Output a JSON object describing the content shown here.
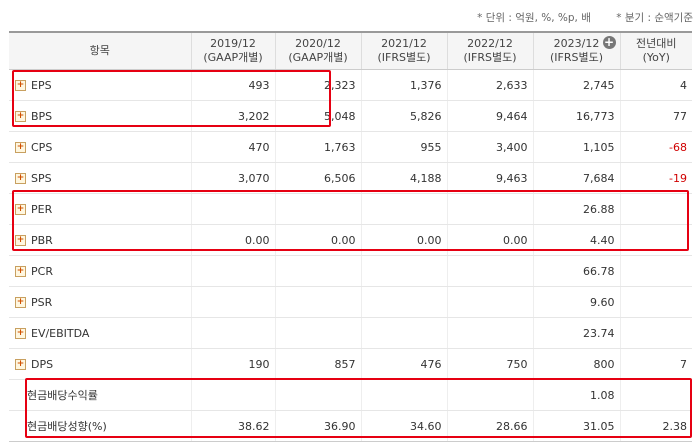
{
  "units": {
    "unit_note": "* 단위 : 억원, %, %p, 배",
    "period_note": "* 분기 : 순액기준"
  },
  "header": {
    "item_label": "항목",
    "columns": [
      {
        "period": "2019/12",
        "basis": "(GAAP개별)"
      },
      {
        "period": "2020/12",
        "basis": "(GAAP개별)"
      },
      {
        "period": "2021/12",
        "basis": "(IFRS별도)"
      },
      {
        "period": "2022/12",
        "basis": "(IFRS별도)"
      },
      {
        "period": "2023/12",
        "basis": "(IFRS별도)"
      }
    ],
    "yoy_label": "전년대비",
    "yoy_sub": "(YoY)",
    "expand_columns_icon": "plus-circle-icon"
  },
  "rows": [
    {
      "label": "EPS",
      "expandable": true,
      "values": [
        "493",
        "2,323",
        "1,376",
        "2,633",
        "2,745"
      ],
      "yoy": "4",
      "yoy_negative": false
    },
    {
      "label": "BPS",
      "expandable": true,
      "values": [
        "3,202",
        "5,048",
        "5,826",
        "9,464",
        "16,773"
      ],
      "yoy": "77",
      "yoy_negative": false
    },
    {
      "label": "CPS",
      "expandable": true,
      "values": [
        "470",
        "1,763",
        "955",
        "3,400",
        "1,105"
      ],
      "yoy": "-68",
      "yoy_negative": true
    },
    {
      "label": "SPS",
      "expandable": true,
      "values": [
        "3,070",
        "6,506",
        "4,188",
        "9,463",
        "7,684"
      ],
      "yoy": "-19",
      "yoy_negative": true
    },
    {
      "label": "PER",
      "expandable": true,
      "values": [
        "",
        "",
        "",
        "",
        "26.88"
      ],
      "yoy": "",
      "yoy_negative": false
    },
    {
      "label": "PBR",
      "expandable": true,
      "values": [
        "0.00",
        "0.00",
        "0.00",
        "0.00",
        "4.40"
      ],
      "yoy": "",
      "yoy_negative": false
    },
    {
      "label": "PCR",
      "expandable": true,
      "values": [
        "",
        "",
        "",
        "",
        "66.78"
      ],
      "yoy": "",
      "yoy_negative": false
    },
    {
      "label": "PSR",
      "expandable": true,
      "values": [
        "",
        "",
        "",
        "",
        "9.60"
      ],
      "yoy": "",
      "yoy_negative": false
    },
    {
      "label": "EV/EBITDA",
      "expandable": true,
      "values": [
        "",
        "",
        "",
        "",
        "23.74"
      ],
      "yoy": "",
      "yoy_negative": false
    },
    {
      "label": "DPS",
      "expandable": true,
      "values": [
        "190",
        "857",
        "476",
        "750",
        "800"
      ],
      "yoy": "7",
      "yoy_negative": false
    },
    {
      "label": "현금배당수익률",
      "expandable": false,
      "values": [
        "",
        "",
        "",
        "",
        "1.08"
      ],
      "yoy": "",
      "yoy_negative": false
    },
    {
      "label": "현금배당성향(%)",
      "expandable": false,
      "values": [
        "38.62",
        "36.90",
        "34.60",
        "28.66",
        "31.05"
      ],
      "yoy": "2.38",
      "yoy_negative": false
    }
  ],
  "colors": {
    "highlight": "#e60012",
    "negative": "#d00000",
    "expand_icon": "#d05000"
  },
  "highlight_groups": [
    {
      "name": "highlight-eps-bps",
      "rows": [
        "EPS",
        "BPS"
      ]
    },
    {
      "name": "highlight-per-pbr",
      "rows": [
        "PER",
        "PBR"
      ]
    },
    {
      "name": "highlight-dividend",
      "rows": [
        "현금배당수익률",
        "현금배당성향(%)"
      ]
    }
  ]
}
